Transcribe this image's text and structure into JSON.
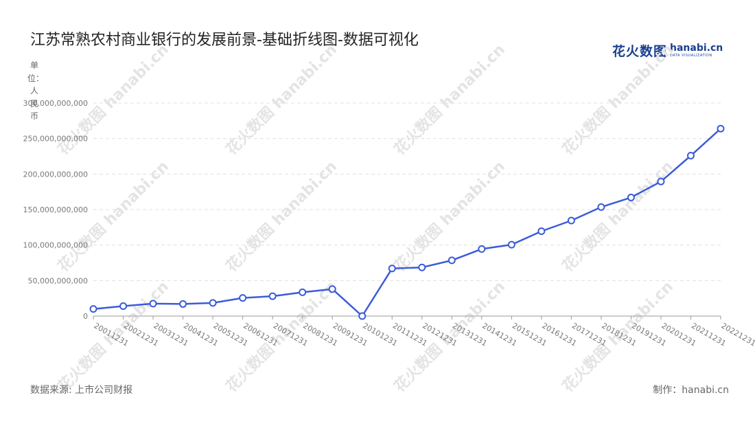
{
  "title": "江苏常熟农村商业银行的发展前景-基础折线图-数据可视化",
  "logo": {
    "cn": "花火数图",
    "en": "hanabi.cn",
    "tagline": "DATA VISUALIZATION"
  },
  "watermark": "花火数图 hanabi.cn",
  "footer": {
    "source": "数据来源: 上市公司财报",
    "credit": "制作：hanabi.cn"
  },
  "colors": {
    "line": "#3b5bdb",
    "grid": "#e0e0e0",
    "axis": "#999999",
    "point_fill": "#ffffff"
  },
  "chart_data": {
    "type": "line",
    "title": "江苏常熟农村商业银行的发展前景-基础折线图-数据可视化",
    "ylabel": "单位：人民币",
    "xlabel": "",
    "ylim": [
      0,
      300000000000
    ],
    "yticks": [
      0,
      50000000000,
      100000000000,
      150000000000,
      200000000000,
      250000000000,
      300000000000
    ],
    "ytick_labels": [
      "0",
      "50,000,000,000",
      "100,000,000,000",
      "150,000,000,000",
      "200,000,000,000",
      "250,000,000,000",
      "300,000,000,000"
    ],
    "grid": true,
    "categories": [
      "20011231",
      "20021231",
      "20031231",
      "20041231",
      "20051231",
      "20061231",
      "20071231",
      "20081231",
      "20091231",
      "20101231",
      "20111231",
      "20121231",
      "20131231",
      "20141231",
      "20151231",
      "20161231",
      "20171231",
      "20181231",
      "20191231",
      "20201231",
      "20211231",
      "20221231"
    ],
    "series": [
      {
        "values": [
          10000000000,
          14000000000,
          17500000000,
          17000000000,
          18500000000,
          25500000000,
          28000000000,
          33500000000,
          38000000000,
          0,
          67000000000,
          68500000000,
          78500000000,
          94500000000,
          100500000000,
          119500000000,
          134500000000,
          153500000000,
          167000000000,
          189500000000,
          226000000000,
          264000000000
        ]
      }
    ]
  }
}
